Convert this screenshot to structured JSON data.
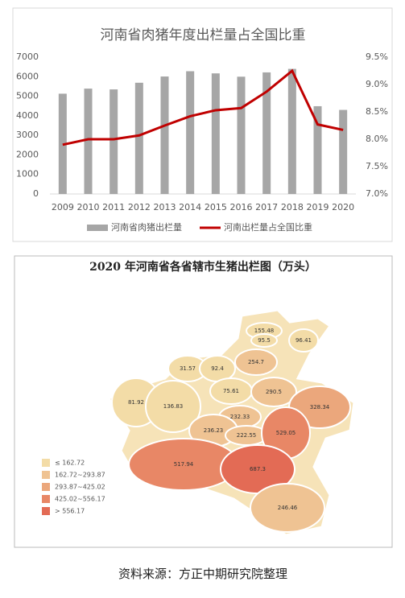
{
  "chart_data": {
    "type": "bar",
    "title": "河南省肉猪年度出栏量占全国比重",
    "categories": [
      "2009",
      "2010",
      "2011",
      "2012",
      "2013",
      "2014",
      "2015",
      "2016",
      "2017",
      "2018",
      "2019",
      "2020"
    ],
    "series": [
      {
        "name": "河南省肉猪出栏量",
        "type": "bar",
        "color": "#a6a6a6",
        "values": [
          5130,
          5390,
          5350,
          5690,
          6010,
          6280,
          6170,
          6000,
          6220,
          6400,
          4490,
          4300
        ]
      },
      {
        "name": "河南出栏量占全国比重",
        "type": "line",
        "axis": "y2",
        "color": "#c00000",
        "values": [
          7.9,
          8.0,
          8.0,
          8.07,
          8.25,
          8.42,
          8.53,
          8.57,
          8.87,
          9.25,
          8.27,
          8.17
        ]
      }
    ],
    "ylim": [
      0,
      7000
    ],
    "yticks": [
      0,
      1000,
      2000,
      3000,
      4000,
      5000,
      6000,
      7000
    ],
    "y2lim": [
      7,
      9.5
    ],
    "y2ticks": [
      {
        "value": 7,
        "label": "7.0%"
      },
      {
        "value": 7.5,
        "label": "7.5%"
      },
      {
        "value": 8,
        "label": "8.0%"
      },
      {
        "value": 8.5,
        "label": "8.5%"
      },
      {
        "value": 9,
        "label": "9.0%"
      },
      {
        "value": 9.5,
        "label": "9.5%"
      }
    ],
    "grid": false,
    "legend": "bottom"
  },
  "map": {
    "title": "2020 年河南省各省辖市生猪出栏图（万头）",
    "regions": [
      {
        "value": 155.48,
        "color": "#f3dca7"
      },
      {
        "value": 95.5,
        "color": "#f3dca7"
      },
      {
        "value": 96.41,
        "color": "#f3dca7"
      },
      {
        "value": 254.7,
        "color": "#efc393"
      },
      {
        "value": 31.57,
        "color": "#f3dca7"
      },
      {
        "value": 92.4,
        "color": "#f3dca7"
      },
      {
        "value": 75.61,
        "color": "#f3dca7"
      },
      {
        "value": 290.5,
        "color": "#efc393"
      },
      {
        "value": 328.34,
        "color": "#eba77c"
      },
      {
        "value": 81.92,
        "color": "#f3dca7"
      },
      {
        "value": 136.83,
        "color": "#f3dca7"
      },
      {
        "value": 232.33,
        "color": "#efc393"
      },
      {
        "value": 236.23,
        "color": "#efc393"
      },
      {
        "value": 222.55,
        "color": "#efc393"
      },
      {
        "value": 529.05,
        "color": "#e88766"
      },
      {
        "value": 517.94,
        "color": "#e88766"
      },
      {
        "value": 687.3,
        "color": "#e36b55"
      },
      {
        "value": 246.46,
        "color": "#efc393"
      }
    ],
    "legend": [
      {
        "label": "≤ 162.72",
        "color": "#f3dca7"
      },
      {
        "label": "162.72~293.87",
        "color": "#efc393"
      },
      {
        "label": "293.87~425.02",
        "color": "#eba77c"
      },
      {
        "label": "425.02~556.17",
        "color": "#e88766"
      },
      {
        "label": "> 556.17",
        "color": "#e36b55"
      }
    ]
  },
  "caption": "资料来源：方正中期研究院整理"
}
